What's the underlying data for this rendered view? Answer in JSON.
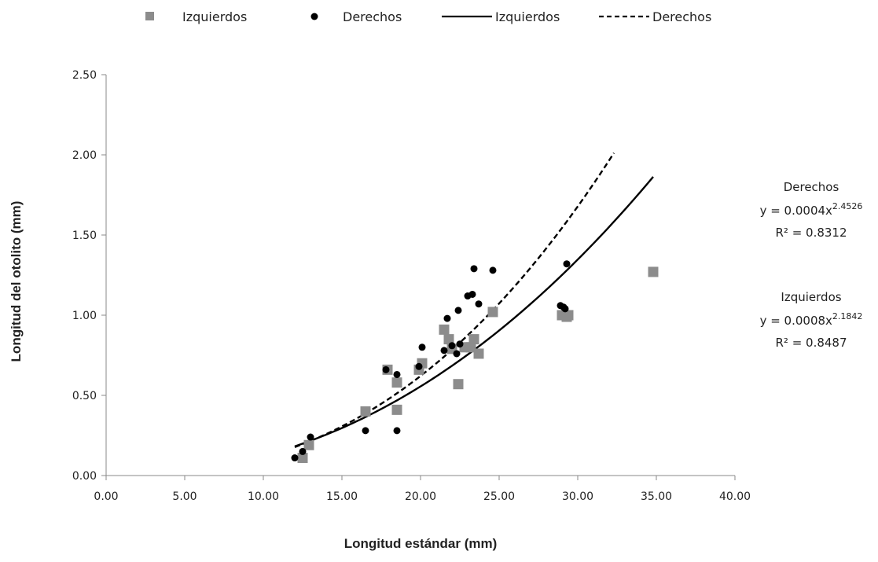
{
  "chart_data": {
    "type": "scatter",
    "xlabel": "Longitud estándar (mm)",
    "ylabel": "Longitud del otolito (mm)",
    "xlim": [
      0,
      40
    ],
    "ylim": [
      0,
      2.5
    ],
    "x_ticks": [
      "0.00",
      "5.00",
      "10.00",
      "15.00",
      "20.00",
      "25.00",
      "30.00",
      "35.00",
      "40.00"
    ],
    "y_ticks": [
      "0.00",
      "0.50",
      "1.00",
      "1.50",
      "2.00",
      "2.50"
    ],
    "grid": false,
    "legend_position": "top",
    "legend": [
      {
        "label": "Izquierdos",
        "kind": "marker-square",
        "color": "#8c8c8c"
      },
      {
        "label": "Derechos",
        "kind": "marker-circle",
        "color": "#000000"
      },
      {
        "label": "Izquierdos",
        "kind": "line-solid",
        "color": "#000000"
      },
      {
        "label": "Derechos",
        "kind": "line-dashed",
        "color": "#000000"
      }
    ],
    "series": [
      {
        "name": "Izquierdos",
        "marker": "square",
        "color": "#8c8c8c",
        "points": [
          [
            12.5,
            0.11
          ],
          [
            12.9,
            0.19
          ],
          [
            16.5,
            0.4
          ],
          [
            17.9,
            0.66
          ],
          [
            18.5,
            0.58
          ],
          [
            18.5,
            0.41
          ],
          [
            19.9,
            0.66
          ],
          [
            20.1,
            0.7
          ],
          [
            21.5,
            0.91
          ],
          [
            21.8,
            0.85
          ],
          [
            22.0,
            0.79
          ],
          [
            22.4,
            0.57
          ],
          [
            22.8,
            0.8
          ],
          [
            23.2,
            0.8
          ],
          [
            23.4,
            0.85
          ],
          [
            23.7,
            0.76
          ],
          [
            24.6,
            1.02
          ],
          [
            29.0,
            1.0
          ],
          [
            29.3,
            0.99
          ],
          [
            29.4,
            1.0
          ],
          [
            34.8,
            1.27
          ]
        ]
      },
      {
        "name": "Derechos",
        "marker": "circle",
        "color": "#000000",
        "points": [
          [
            12.0,
            0.11
          ],
          [
            12.5,
            0.15
          ],
          [
            13.0,
            0.24
          ],
          [
            16.5,
            0.28
          ],
          [
            17.8,
            0.66
          ],
          [
            18.5,
            0.63
          ],
          [
            18.5,
            0.28
          ],
          [
            19.9,
            0.68
          ],
          [
            20.1,
            0.8
          ],
          [
            21.5,
            0.78
          ],
          [
            21.7,
            0.98
          ],
          [
            22.0,
            0.81
          ],
          [
            22.3,
            0.76
          ],
          [
            22.4,
            1.03
          ],
          [
            22.5,
            0.82
          ],
          [
            23.0,
            1.12
          ],
          [
            23.3,
            1.13
          ],
          [
            23.4,
            1.29
          ],
          [
            23.7,
            1.07
          ],
          [
            24.6,
            1.28
          ],
          [
            28.9,
            1.06
          ],
          [
            29.1,
            1.05
          ],
          [
            29.2,
            1.04
          ],
          [
            29.3,
            1.32
          ]
        ]
      }
    ],
    "trendlines": [
      {
        "name": "Izquierdos",
        "type": "power",
        "a": 0.0008,
        "b": 2.1842,
        "x_range": [
          12.0,
          34.8
        ],
        "style": "solid"
      },
      {
        "name": "Derechos",
        "type": "power",
        "a": 0.0004,
        "b": 2.4526,
        "x_range": [
          12.0,
          32.3
        ],
        "style": "dashed"
      }
    ],
    "annotations": [
      {
        "title": "Derechos",
        "eq_prefix": "y = 0.0004x",
        "exponent": "2.4526",
        "r2": "R² = 0.8312"
      },
      {
        "title": "Izquierdos",
        "eq_prefix": "y = 0.0008x",
        "exponent": "2.1842",
        "r2": "R² = 0.8487"
      }
    ]
  }
}
